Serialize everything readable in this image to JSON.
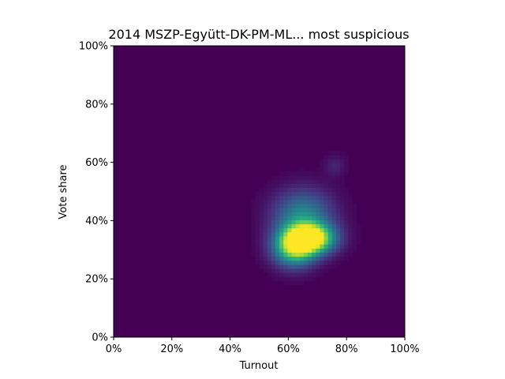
{
  "chart_data": {
    "type": "heatmap",
    "title": "2014 MSZP-Együtt-DK-PM-ML... most suspicious",
    "xlabel": "Turnout",
    "ylabel": "Vote share",
    "xlim": [
      0,
      1
    ],
    "ylim": [
      0,
      1
    ],
    "x_ticks": [
      0,
      0.2,
      0.4,
      0.6,
      0.8,
      1.0
    ],
    "y_ticks": [
      0,
      0.2,
      0.4,
      0.6,
      0.8,
      1.0
    ],
    "x_tick_labels": [
      "0%",
      "20%",
      "40%",
      "60%",
      "80%",
      "100%"
    ],
    "y_tick_labels": [
      "0%",
      "20%",
      "40%",
      "60%",
      "80%",
      "100%"
    ],
    "colormap": "viridis",
    "background_color": "#440154",
    "grid": false,
    "legend": "none",
    "density_peaks": [
      {
        "x": 0.68,
        "y": 0.34,
        "relative_intensity": 1.0
      },
      {
        "x": 0.62,
        "y": 0.31,
        "relative_intensity": 0.8
      },
      {
        "x": 0.65,
        "y": 0.42,
        "relative_intensity": 0.45
      },
      {
        "x": 0.76,
        "y": 0.59,
        "relative_intensity": 0.1
      }
    ]
  }
}
